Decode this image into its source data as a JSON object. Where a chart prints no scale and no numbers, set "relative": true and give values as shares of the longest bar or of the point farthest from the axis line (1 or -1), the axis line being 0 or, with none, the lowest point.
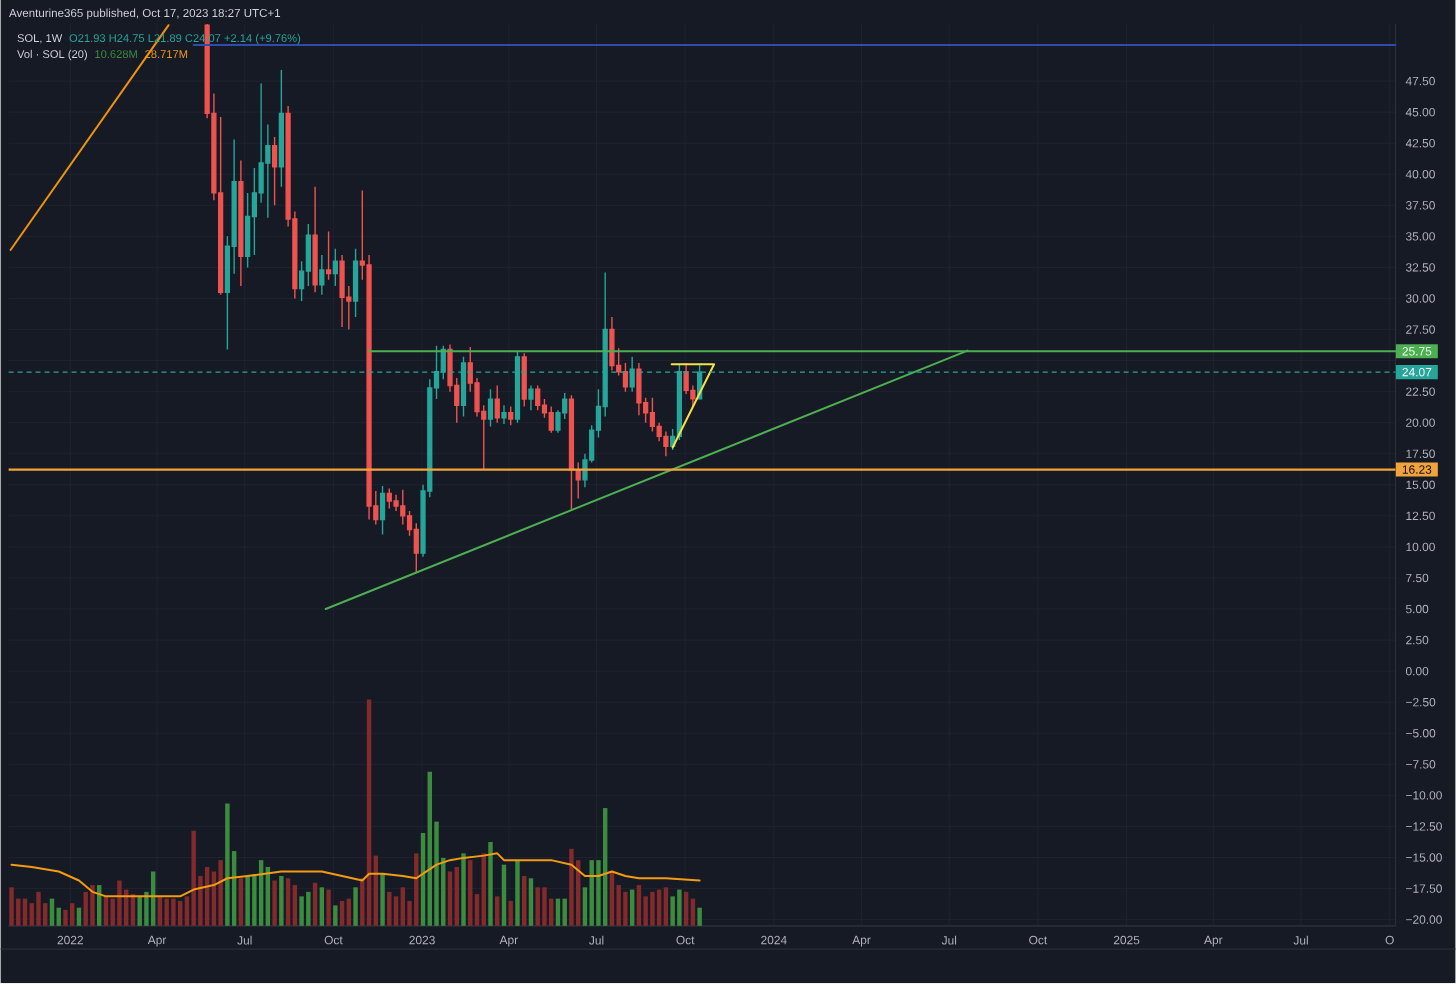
{
  "chart_data": [
    {
      "type": "candlestick",
      "title": "SOL, 1W",
      "subtitle": "O21.93 H24.75 L21.89 C24.07 +2.14 (+9.76%)",
      "annotations": [
        "Aventurine365 published, Oct 17, 2023 18:27 UTC+1"
      ],
      "x": [
        "2022-05-23",
        "2022-05-30",
        "2022-06-06",
        "2022-06-13",
        "2022-06-20",
        "2022-06-27",
        "2022-07-04",
        "2022-07-11",
        "2022-07-18",
        "2022-07-25",
        "2022-08-01",
        "2022-08-08",
        "2022-08-15",
        "2022-08-22",
        "2022-08-29",
        "2022-09-05",
        "2022-09-12",
        "2022-09-19",
        "2022-09-26",
        "2022-10-03",
        "2022-10-10",
        "2022-10-17",
        "2022-10-24",
        "2022-10-31",
        "2022-11-07",
        "2022-11-14",
        "2022-11-21",
        "2022-11-28",
        "2022-12-05",
        "2022-12-12",
        "2022-12-19",
        "2022-12-26",
        "2023-01-02",
        "2023-01-09",
        "2023-01-16",
        "2023-01-23",
        "2023-01-30",
        "2023-02-06",
        "2023-02-13",
        "2023-02-20",
        "2023-02-27",
        "2023-03-06",
        "2023-03-13",
        "2023-03-20",
        "2023-03-27",
        "2023-04-03",
        "2023-04-10",
        "2023-04-17",
        "2023-04-24",
        "2023-05-01",
        "2023-05-08",
        "2023-05-15",
        "2023-05-22",
        "2023-05-29",
        "2023-06-05",
        "2023-06-12",
        "2023-06-19",
        "2023-06-26",
        "2023-07-03",
        "2023-07-10",
        "2023-07-17",
        "2023-07-24",
        "2023-07-31",
        "2023-08-07",
        "2023-08-14",
        "2023-08-21",
        "2023-08-28",
        "2023-09-04",
        "2023-09-11",
        "2023-09-18",
        "2023-09-25",
        "2023-10-02",
        "2023-10-09",
        "2023-10-16"
      ],
      "ohlc": [
        [
          52.0,
          52.1,
          44.5,
          44.9
        ],
        [
          44.9,
          46.5,
          37.9,
          38.5
        ],
        [
          38.5,
          44.6,
          30.3,
          30.5
        ],
        [
          30.5,
          35.0,
          25.9,
          34.2
        ],
        [
          34.2,
          42.8,
          32.0,
          39.4
        ],
        [
          39.4,
          41.1,
          31.0,
          33.4
        ],
        [
          33.4,
          38.5,
          32.5,
          36.6
        ],
        [
          36.6,
          40.5,
          33.5,
          38.5
        ],
        [
          38.5,
          47.3,
          37.7,
          40.9
        ],
        [
          40.9,
          44.0,
          36.5,
          42.3
        ],
        [
          42.3,
          43.0,
          37.5,
          40.6
        ],
        [
          40.6,
          48.4,
          39.0,
          44.9
        ],
        [
          44.9,
          45.5,
          35.8,
          36.4
        ],
        [
          36.4,
          37.0,
          30.0,
          30.8
        ],
        [
          30.8,
          33.0,
          29.8,
          32.2
        ],
        [
          32.2,
          36.0,
          31.0,
          35.1
        ],
        [
          35.1,
          39.0,
          30.5,
          31.1
        ],
        [
          31.1,
          33.5,
          30.3,
          32.3
        ],
        [
          32.3,
          35.4,
          31.5,
          32.0
        ],
        [
          32.0,
          34.0,
          31.0,
          33.0
        ],
        [
          33.0,
          33.5,
          27.7,
          30.1
        ],
        [
          30.1,
          31.0,
          27.5,
          29.8
        ],
        [
          29.8,
          34.0,
          28.5,
          33.0
        ],
        [
          33.0,
          38.7,
          31.5,
          32.7
        ],
        [
          32.7,
          33.5,
          12.2,
          13.3
        ],
        [
          13.3,
          14.5,
          11.8,
          12.2
        ],
        [
          12.2,
          14.9,
          11.0,
          14.3
        ],
        [
          14.3,
          14.7,
          13.1,
          13.7
        ],
        [
          13.7,
          14.2,
          12.9,
          13.3
        ],
        [
          13.3,
          14.6,
          11.8,
          12.5
        ],
        [
          12.5,
          12.9,
          10.9,
          11.4
        ],
        [
          11.4,
          11.9,
          7.9,
          9.5
        ],
        [
          9.5,
          15.0,
          9.2,
          14.5
        ],
        [
          14.5,
          23.5,
          14.0,
          22.8
        ],
        [
          22.8,
          26.2,
          21.9,
          24.1
        ],
        [
          24.1,
          26.2,
          23.5,
          25.9
        ],
        [
          25.9,
          26.3,
          22.5,
          23.0
        ],
        [
          23.0,
          23.6,
          20.0,
          21.4
        ],
        [
          21.4,
          25.3,
          20.5,
          24.8
        ],
        [
          24.8,
          26.1,
          22.5,
          23.2
        ],
        [
          23.2,
          23.6,
          20.5,
          20.9
        ],
        [
          20.9,
          21.4,
          16.2,
          20.3
        ],
        [
          20.3,
          22.7,
          19.7,
          21.9
        ],
        [
          21.9,
          23.0,
          20.0,
          20.4
        ],
        [
          20.4,
          21.4,
          19.9,
          20.8
        ],
        [
          20.8,
          21.3,
          19.8,
          20.3
        ],
        [
          20.3,
          25.7,
          20.0,
          25.3
        ],
        [
          25.3,
          25.6,
          21.3,
          21.9
        ],
        [
          21.9,
          23.0,
          21.0,
          22.7
        ],
        [
          22.7,
          23.0,
          21.0,
          21.4
        ],
        [
          21.4,
          21.9,
          20.4,
          20.8
        ],
        [
          20.8,
          21.3,
          19.2,
          19.4
        ],
        [
          19.4,
          21.0,
          19.2,
          20.8
        ],
        [
          20.8,
          22.4,
          20.3,
          21.9
        ],
        [
          21.9,
          22.2,
          13.0,
          16.2
        ],
        [
          16.2,
          16.8,
          13.9,
          15.4
        ],
        [
          15.4,
          17.5,
          14.8,
          17.0
        ],
        [
          17.0,
          19.8,
          16.8,
          19.4
        ],
        [
          19.4,
          22.7,
          18.8,
          21.3
        ],
        [
          21.3,
          32.1,
          20.5,
          27.5
        ],
        [
          27.5,
          28.5,
          24.2,
          24.6
        ],
        [
          24.6,
          26.0,
          23.8,
          24.1
        ],
        [
          24.1,
          24.8,
          22.5,
          22.9
        ],
        [
          22.9,
          25.3,
          22.5,
          24.3
        ],
        [
          24.3,
          24.8,
          20.6,
          21.6
        ],
        [
          21.6,
          22.0,
          20.0,
          20.8
        ],
        [
          20.8,
          22.0,
          19.3,
          19.7
        ],
        [
          19.7,
          20.0,
          18.5,
          18.9
        ],
        [
          18.9,
          19.3,
          17.3,
          18.1
        ],
        [
          18.1,
          19.5,
          17.8,
          18.9
        ],
        [
          18.9,
          24.7,
          18.6,
          24.1
        ],
        [
          24.1,
          24.8,
          22.3,
          22.6
        ],
        [
          22.6,
          23.0,
          21.3,
          21.93
        ],
        [
          21.93,
          24.75,
          21.89,
          24.07
        ]
      ],
      "colors": [
        "#ef5350",
        "#ef5350",
        "#ef5350",
        "#26a69a",
        "#26a69a",
        "#ef5350",
        "#26a69a",
        "#26a69a",
        "#26a69a",
        "#26a69a",
        "#ef5350",
        "#26a69a",
        "#ef5350",
        "#ef5350",
        "#26a69a",
        "#26a69a",
        "#ef5350",
        "#26a69a",
        "#ef5350",
        "#26a69a",
        "#ef5350",
        "#ef5350",
        "#26a69a",
        "#ef5350",
        "#ef5350",
        "#ef5350",
        "#26a69a",
        "#ef5350",
        "#ef5350",
        "#ef5350",
        "#ef5350",
        "#ef5350",
        "#26a69a",
        "#26a69a",
        "#26a69a",
        "#26a69a",
        "#ef5350",
        "#ef5350",
        "#26a69a",
        "#ef5350",
        "#ef5350",
        "#ef5350",
        "#26a69a",
        "#ef5350",
        "#26a69a",
        "#ef5350",
        "#26a69a",
        "#ef5350",
        "#26a69a",
        "#ef5350",
        "#ef5350",
        "#ef5350",
        "#26a69a",
        "#26a69a",
        "#ef5350",
        "#ef5350",
        "#26a69a",
        "#26a69a",
        "#26a69a",
        "#26a69a",
        "#ef5350",
        "#ef5350",
        "#ef5350",
        "#26a69a",
        "#ef5350",
        "#ef5350",
        "#ef5350",
        "#ef5350",
        "#ef5350",
        "#26a69a",
        "#26a69a",
        "#ef5350",
        "#ef5350",
        "#26a69a"
      ],
      "xlim": [
        "2021-10-29",
        "2025-10-07"
      ],
      "ylim": [
        -20.5,
        52.1
      ],
      "xticks": [
        {
          "value": "2022-01-01",
          "label": "2022"
        },
        {
          "value": "2022-04-01",
          "label": "Apr"
        },
        {
          "value": "2022-07-01",
          "label": "Jul"
        },
        {
          "value": "2022-10-01",
          "label": "Oct"
        },
        {
          "value": "2023-01-01",
          "label": "2023"
        },
        {
          "value": "2023-04-01",
          "label": "Apr"
        },
        {
          "value": "2023-07-01",
          "label": "Jul"
        },
        {
          "value": "2023-10-01",
          "label": "Oct"
        },
        {
          "value": "2024-01-01",
          "label": "2024"
        },
        {
          "value": "2024-04-01",
          "label": "Apr"
        },
        {
          "value": "2024-07-01",
          "label": "Jul"
        },
        {
          "value": "2024-10-01",
          "label": "Oct"
        },
        {
          "value": "2025-01-01",
          "label": "2025"
        },
        {
          "value": "2025-04-01",
          "label": "Apr"
        },
        {
          "value": "2025-07-01",
          "label": "Jul"
        },
        {
          "value": "2025-10-01",
          "label": "O"
        }
      ],
      "yticks": [
        {
          "value": -20,
          "label": "−20.00"
        },
        {
          "value": -17.5,
          "label": "−17.50"
        },
        {
          "value": -15,
          "label": "−15.00"
        },
        {
          "value": -12.5,
          "label": "−12.50"
        },
        {
          "value": -10,
          "label": "−10.00"
        },
        {
          "value": -7.5,
          "label": "−7.50"
        },
        {
          "value": -5,
          "label": "−5.00"
        },
        {
          "value": -2.5,
          "label": "−2.50"
        },
        {
          "value": 0,
          "label": "0.00"
        },
        {
          "value": 2.5,
          "label": "2.50"
        },
        {
          "value": 5,
          "label": "5.00"
        },
        {
          "value": 7.5,
          "label": "7.50"
        },
        {
          "value": 10,
          "label": "10.00"
        },
        {
          "value": 12.5,
          "label": "12.50"
        },
        {
          "value": 15,
          "label": "15.00"
        },
        {
          "value": 17.5,
          "label": "17.50"
        },
        {
          "value": 20,
          "label": "20.00"
        },
        {
          "value": 22.5,
          "label": "22.50"
        },
        {
          "value": 25,
          "label": null
        },
        {
          "value": 27.5,
          "label": "27.50"
        },
        {
          "value": 30,
          "label": "30.00"
        },
        {
          "value": 32.5,
          "label": "32.50"
        },
        {
          "value": 35,
          "label": "35.00"
        },
        {
          "value": 37.5,
          "label": "37.50"
        },
        {
          "value": 40,
          "label": "40.00"
        },
        {
          "value": 42.5,
          "label": "42.50"
        },
        {
          "value": 45,
          "label": "45.00"
        },
        {
          "value": 47.5,
          "label": "47.50"
        }
      ],
      "grid": true,
      "ref_lines": [
        {
          "axis": "y",
          "value": 16.23,
          "label": "16.23",
          "color": "#f2a43a"
        },
        {
          "axis": "y",
          "value": 24.07,
          "label": "24.07",
          "color": "#26a69a",
          "line_style": "dashed"
        }
      ],
      "series": [
        {
          "type": "line",
          "color": "#4caf50",
          "x": [
            "2022-11-07",
            "2025-10-07"
          ],
          "values": [
            25.75,
            25.75
          ],
          "value_labels": [
            null,
            "25.75"
          ]
        },
        {
          "type": "line",
          "color": "#2f4bb0",
          "x": [
            "2022-05-09",
            "2025-10-07"
          ],
          "values": [
            50.4,
            50.4
          ]
        },
        {
          "type": "line",
          "color": "#4caf50",
          "x": [
            "2022-09-23",
            "2024-07-20"
          ],
          "values": [
            5.0,
            25.8
          ]
        },
        {
          "type": "line",
          "color": "#f0920c",
          "x": [
            "2021-10-31",
            "2022-04-13"
          ],
          "values": [
            33.9,
            52.0
          ]
        },
        {
          "type": "line",
          "color": "#f5e342",
          "x": [
            "2023-09-17",
            "2023-10-31",
            "2023-09-18"
          ],
          "values": [
            24.7,
            24.7,
            18.0
          ]
        }
      ]
    },
    {
      "type": "bar",
      "title": "Vol · SOL (20)",
      "relative": true,
      "tick_labels": false,
      "xlim": [
        "2021-10-29",
        "2025-10-07"
      ],
      "x": [
        "2021-11-01",
        "2021-11-08",
        "2021-11-15",
        "2021-11-22",
        "2021-11-29",
        "2021-12-06",
        "2021-12-13",
        "2021-12-20",
        "2021-12-27",
        "2022-01-03",
        "2022-01-10",
        "2022-01-17",
        "2022-01-24",
        "2022-01-31",
        "2022-02-07",
        "2022-02-14",
        "2022-02-21",
        "2022-02-28",
        "2022-03-07",
        "2022-03-14",
        "2022-03-21",
        "2022-03-28",
        "2022-04-04",
        "2022-04-11",
        "2022-04-18",
        "2022-04-25",
        "2022-05-02",
        "2022-05-09",
        "2022-05-16",
        "2022-05-23",
        "2022-05-30",
        "2022-06-06",
        "2022-06-13",
        "2022-06-20",
        "2022-06-27",
        "2022-07-04",
        "2022-07-11",
        "2022-07-18",
        "2022-07-25",
        "2022-08-01",
        "2022-08-08",
        "2022-08-15",
        "2022-08-22",
        "2022-08-29",
        "2022-09-05",
        "2022-09-12",
        "2022-09-19",
        "2022-09-26",
        "2022-10-03",
        "2022-10-10",
        "2022-10-17",
        "2022-10-24",
        "2022-10-31",
        "2022-11-07",
        "2022-11-14",
        "2022-11-21",
        "2022-11-28",
        "2022-12-05",
        "2022-12-12",
        "2022-12-19",
        "2022-12-26",
        "2023-01-02",
        "2023-01-09",
        "2023-01-16",
        "2023-01-23",
        "2023-01-30",
        "2023-02-06",
        "2023-02-13",
        "2023-02-20",
        "2023-02-27",
        "2023-03-06",
        "2023-03-13",
        "2023-03-20",
        "2023-03-27",
        "2023-04-03",
        "2023-04-10",
        "2023-04-17",
        "2023-04-24",
        "2023-05-01",
        "2023-05-08",
        "2023-05-15",
        "2023-05-22",
        "2023-05-29",
        "2023-06-05",
        "2023-06-12",
        "2023-06-19",
        "2023-06-26",
        "2023-07-03",
        "2023-07-10",
        "2023-07-17",
        "2023-07-24",
        "2023-07-31",
        "2023-08-07",
        "2023-08-14",
        "2023-08-21",
        "2023-08-28",
        "2023-09-04",
        "2023-09-11",
        "2023-09-18",
        "2023-09-25",
        "2023-10-02",
        "2023-10-09",
        "2023-10-16"
      ],
      "series": [
        {
          "name": "10.628M",
          "values": [
            0.17,
            0.12,
            0.12,
            0.1,
            0.15,
            0.1,
            0.12,
            0.08,
            0.07,
            0.1,
            0.08,
            0.15,
            0.18,
            0.18,
            0.13,
            0.12,
            0.2,
            0.16,
            0.14,
            0.13,
            0.15,
            0.24,
            0.13,
            0.12,
            0.12,
            0.11,
            0.13,
            0.42,
            0.22,
            0.26,
            0.24,
            0.29,
            0.54,
            0.33,
            0.21,
            0.22,
            0.22,
            0.29,
            0.26,
            0.2,
            0.22,
            0.21,
            0.18,
            0.13,
            0.15,
            0.19,
            0.17,
            0.16,
            0.09,
            0.11,
            0.12,
            0.17,
            0.21,
            1,
            0.31,
            0.23,
            0.15,
            0.13,
            0.17,
            0.11,
            0.32,
            0.41,
            0.68,
            0.46,
            0.3,
            0.24,
            0.26,
            0.32,
            0.29,
            0.14,
            0.32,
            0.37,
            0.13,
            0.27,
            0.11,
            0.29,
            0.22,
            0.21,
            0.17,
            0.17,
            0.12,
            0.12,
            0.12,
            0.34,
            0.29,
            0.17,
            0.29,
            0.29,
            0.52,
            0.24,
            0.18,
            0.15,
            0.16,
            0.18,
            0.13,
            0.15,
            0.16,
            0.17,
            0.13,
            0.16,
            0.15,
            0.12,
            0.08
          ],
          "colors": [
            "#822a2c",
            "#822a2c",
            "#822a2c",
            "#822a2c",
            "#822a2c",
            "#822a2c",
            "#3c8c40",
            "#3c8c40",
            "#822a2c",
            "#822a2c",
            "#3c8c40",
            "#822a2c",
            "#822a2c",
            "#3c8c40",
            "#822a2c",
            "#822a2c",
            "#822a2c",
            "#822a2c",
            "#822a2c",
            "#3c8c40",
            "#3c8c40",
            "#3c8c40",
            "#822a2c",
            "#822a2c",
            "#822a2c",
            "#822a2c",
            "#822a2c",
            "#822a2c",
            "#822a2c",
            "#822a2c",
            "#822a2c",
            "#822a2c",
            "#3c8c40",
            "#3c8c40",
            "#822a2c",
            "#3c8c40",
            "#3c8c40",
            "#3c8c40",
            "#3c8c40",
            "#822a2c",
            "#3c8c40",
            "#822a2c",
            "#822a2c",
            "#3c8c40",
            "#3c8c40",
            "#822a2c",
            "#3c8c40",
            "#822a2c",
            "#3c8c40",
            "#822a2c",
            "#822a2c",
            "#3c8c40",
            "#822a2c",
            "#822a2c",
            "#822a2c",
            "#3c8c40",
            "#822a2c",
            "#822a2c",
            "#822a2c",
            "#822a2c",
            "#822a2c",
            "#3c8c40",
            "#3c8c40",
            "#3c8c40",
            "#3c8c40",
            "#822a2c",
            "#822a2c",
            "#3c8c40",
            "#822a2c",
            "#822a2c",
            "#822a2c",
            "#3c8c40",
            "#822a2c",
            "#3c8c40",
            "#822a2c",
            "#3c8c40",
            "#822a2c",
            "#3c8c40",
            "#822a2c",
            "#822a2c",
            "#822a2c",
            "#3c8c40",
            "#3c8c40",
            "#822a2c",
            "#822a2c",
            "#3c8c40",
            "#3c8c40",
            "#3c8c40",
            "#3c8c40",
            "#822a2c",
            "#822a2c",
            "#822a2c",
            "#3c8c40",
            "#822a2c",
            "#822a2c",
            "#822a2c",
            "#822a2c",
            "#822a2c",
            "#3c8c40",
            "#3c8c40",
            "#822a2c",
            "#822a2c",
            "#3c8c40"
          ]
        },
        {
          "name": "28.717M",
          "type": "line",
          "color": "#f39c12",
          "x": [
            "2021-11-01",
            "2021-11-22",
            "2021-12-20",
            "2022-01-10",
            "2022-01-24",
            "2022-02-07",
            "2022-04-25",
            "2022-05-09",
            "2022-05-30",
            "2022-06-13",
            "2022-07-04",
            "2022-08-08",
            "2022-09-19",
            "2022-10-10",
            "2022-10-31",
            "2022-11-07",
            "2022-11-21",
            "2022-12-12",
            "2022-12-26",
            "2023-01-16",
            "2023-01-30",
            "2023-02-13",
            "2023-03-06",
            "2023-03-20",
            "2023-03-27",
            "2023-05-01",
            "2023-05-15",
            "2023-06-05",
            "2023-06-19",
            "2023-07-03",
            "2023-07-17",
            "2023-07-31",
            "2023-08-14",
            "2023-09-11",
            "2023-10-16"
          ],
          "values": [
            0.27,
            0.26,
            0.24,
            0.2,
            0.15,
            0.13,
            0.13,
            0.16,
            0.18,
            0.21,
            0.22,
            0.24,
            0.24,
            0.22,
            0.2,
            0.23,
            0.23,
            0.22,
            0.21,
            0.27,
            0.29,
            0.3,
            0.31,
            0.32,
            0.29,
            0.29,
            0.29,
            0.27,
            0.22,
            0.22,
            0.24,
            0.22,
            0.21,
            0.21,
            0.2
          ]
        }
      ]
    }
  ]
}
